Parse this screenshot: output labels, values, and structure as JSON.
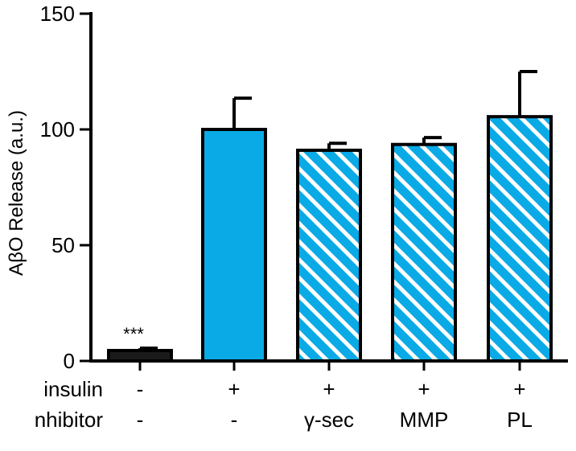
{
  "chart_data": {
    "type": "bar",
    "ylabel": "AβO Release (a.u.)",
    "ylim": [
      0,
      150
    ],
    "yticks": [
      0,
      50,
      100,
      150
    ],
    "grid": false,
    "row_labels": [
      "insulin",
      "nhibitor"
    ],
    "categories": [
      {
        "insulin": "-",
        "inhibitor": "-",
        "value": 4.5,
        "error": 1.0,
        "fill": "solid",
        "color": "#1a1a1a",
        "annotation": "***"
      },
      {
        "insulin": "+",
        "inhibitor": "-",
        "value": 100,
        "error": 13.5,
        "fill": "solid",
        "color": "#0aaae6",
        "annotation": ""
      },
      {
        "insulin": "+",
        "inhibitor": "γ-sec",
        "value": 91,
        "error": 3.0,
        "fill": "hatched",
        "color": "#0aaae6",
        "annotation": ""
      },
      {
        "insulin": "+",
        "inhibitor": "MMP",
        "value": 93.5,
        "error": 3.0,
        "fill": "hatched",
        "color": "#0aaae6",
        "annotation": ""
      },
      {
        "insulin": "+",
        "inhibitor": "PL",
        "value": 105.5,
        "error": 19.5,
        "fill": "hatched",
        "color": "#0aaae6",
        "annotation": ""
      }
    ]
  }
}
